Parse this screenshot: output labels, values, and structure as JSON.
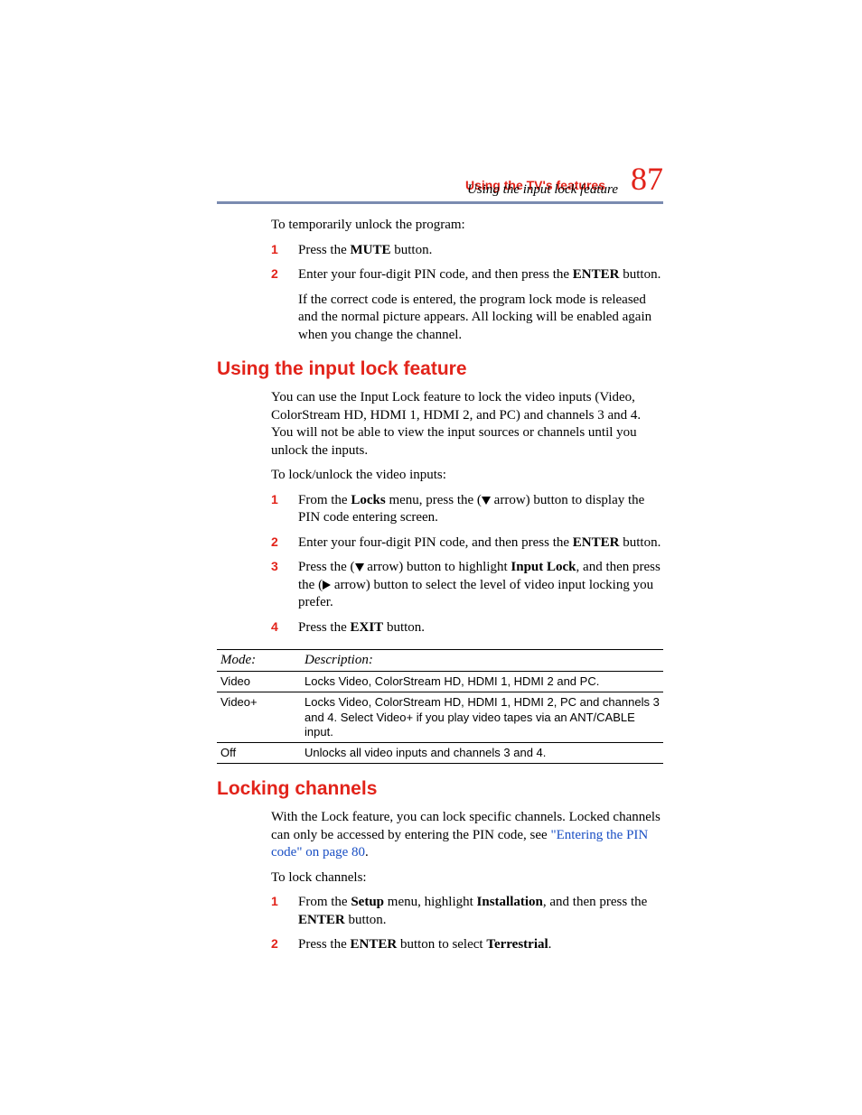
{
  "colors": {
    "accent": "#e2231a",
    "rule": "#7a8bb0",
    "link": "#1a4fc4",
    "text": "#000000",
    "background": "#ffffff"
  },
  "header": {
    "chapter": "Using the TV's features",
    "section": "Using the input lock feature",
    "page_number": "87"
  },
  "intro": {
    "lead": "To temporarily unlock the program:",
    "steps": [
      {
        "n": "1",
        "pre": "Press the ",
        "bold1": "MUTE",
        "post": " button."
      },
      {
        "n": "2",
        "pre": "Enter your four-digit PIN code, and then press the ",
        "bold1": "ENTER",
        "post": " button."
      }
    ],
    "note": "If the correct code is entered, the program lock mode is released and the normal picture appears. All locking will be enabled again when you change the channel."
  },
  "section1": {
    "title": "Using the input lock feature",
    "para": "You can use the Input Lock feature to lock the video inputs (Video, ColorStream HD, HDMI 1, HDMI 2, and PC) and channels 3 and 4. You will not be able to view the input sources or channels until you unlock the inputs.",
    "lead": "To lock/unlock the video inputs:",
    "step1": {
      "n": "1",
      "a": "From the ",
      "b": "Locks",
      "c": " menu, press the (",
      "d": " arrow) button to display the PIN code entering screen."
    },
    "step2": {
      "n": "2",
      "a": "Enter your four-digit PIN code, and then press the ",
      "b": "ENTER",
      "c": " button."
    },
    "step3": {
      "n": "3",
      "a": "Press the (",
      "b": " arrow) button to highlight ",
      "c": "Input Lock",
      "d": ", and then press the (",
      "e": " arrow) button to select the level of video input locking you prefer."
    },
    "step4": {
      "n": "4",
      "a": "Press the ",
      "b": "EXIT",
      "c": " button."
    }
  },
  "table": {
    "head": {
      "c1": "Mode:",
      "c2": "Description:"
    },
    "rows": [
      {
        "c1": "Video",
        "c2": "Locks Video, ColorStream HD, HDMI 1, HDMI 2 and PC."
      },
      {
        "c1": "Video+",
        "c2": "Locks Video, ColorStream HD, HDMI 1, HDMI 2, PC and channels 3 and 4. Select Video+ if you play video tapes via an ANT/CABLE input."
      },
      {
        "c1": "Off",
        "c2": "Unlocks all video inputs and channels 3 and 4."
      }
    ]
  },
  "section2": {
    "title": "Locking channels",
    "para_a": "With the Lock feature, you can lock specific channels. Locked channels can only be accessed by entering the PIN code, see ",
    "link": "\"Entering the PIN code\" on page 80",
    "para_b": ".",
    "lead": "To lock channels:",
    "step1": {
      "n": "1",
      "a": "From the ",
      "b": "Setup",
      "c": " menu, highlight ",
      "d": "Installation",
      "e": ", and then press the ",
      "f": "ENTER",
      "g": " button."
    },
    "step2": {
      "n": "2",
      "a": "Press the ",
      "b": "ENTER",
      "c": " button to select ",
      "d": "Terrestrial",
      "e": "."
    }
  }
}
